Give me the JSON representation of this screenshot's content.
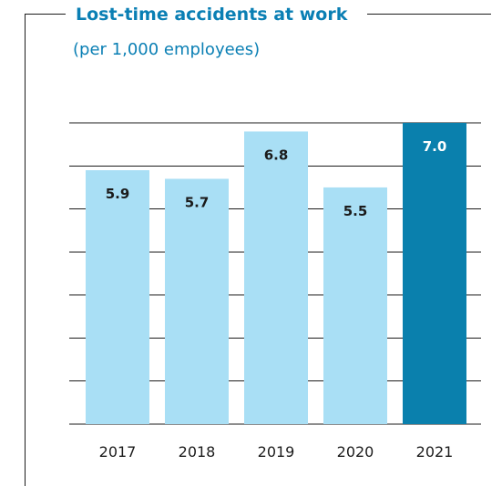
{
  "header": {
    "title": "Lost-time accidents at work",
    "subtitle": "(per 1,000 employees)"
  },
  "chart_data": {
    "type": "bar",
    "title": "Lost-time accidents at work",
    "subtitle": "(per 1,000 employees)",
    "categories": [
      "2017",
      "2018",
      "2019",
      "2020",
      "2021"
    ],
    "values": [
      5.9,
      5.7,
      6.8,
      5.5,
      7.0
    ],
    "value_labels": [
      "5.9",
      "5.7",
      "6.8",
      "5.5",
      "7.0"
    ],
    "ylim": [
      0,
      7.0
    ],
    "grid": true,
    "legend": "none",
    "colors": {
      "bar": "#a9dff5",
      "highlight_bar": "#0a80ad",
      "label_dark": "#1b1b1b",
      "label_light": "#ffffff",
      "title": "#0a7fb4",
      "grid": "#1b1b1b"
    },
    "highlight_index": 4
  }
}
